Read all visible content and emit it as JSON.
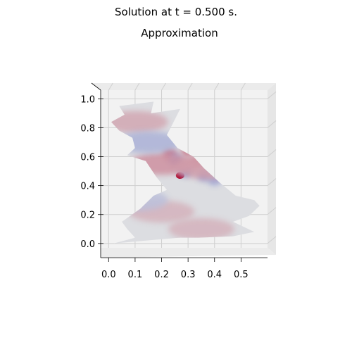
{
  "figure": {
    "suptitle": "Solution at t = 0.500 s.",
    "title": "Approximation"
  },
  "chart_data": {
    "type": "surface",
    "title": "Approximation",
    "suptitle": "Solution at t = 0.500 s.",
    "xlabel": "",
    "ylabel": "",
    "xlim": [
      -0.03,
      0.6
    ],
    "ylim": [
      -0.03,
      1.06
    ],
    "x_ticks": [
      "0.0",
      "0.1",
      "0.2",
      "0.3",
      "0.4",
      "0.5"
    ],
    "y_ticks": [
      "0.0",
      "0.2",
      "0.4",
      "0.6",
      "0.8",
      "1.0"
    ],
    "grid": true,
    "colormap": "coolwarm",
    "colors": {
      "neutral": "#dcdde1",
      "warm": "#f2b59a",
      "cool": "#a9c4f0",
      "peak_hot": "#b40426",
      "peak_cold": "#3b4cc0"
    },
    "domain_outline": [
      [
        0.04,
        0.95
      ],
      [
        0.17,
        0.98
      ],
      [
        0.16,
        0.9
      ],
      [
        0.27,
        0.93
      ],
      [
        0.24,
        0.82
      ],
      [
        0.22,
        0.75
      ],
      [
        0.26,
        0.66
      ],
      [
        0.32,
        0.6
      ],
      [
        0.36,
        0.52
      ],
      [
        0.42,
        0.42
      ],
      [
        0.48,
        0.33
      ],
      [
        0.55,
        0.3
      ],
      [
        0.57,
        0.26
      ],
      [
        0.53,
        0.19
      ],
      [
        0.47,
        0.15
      ],
      [
        0.55,
        0.08
      ],
      [
        0.47,
        0.05
      ],
      [
        0.34,
        0.04
      ],
      [
        0.27,
        0.04
      ],
      [
        0.14,
        0.02
      ],
      [
        0.02,
        0.0
      ],
      [
        0.1,
        0.04
      ],
      [
        0.07,
        0.1
      ],
      [
        0.05,
        0.15
      ],
      [
        0.12,
        0.24
      ],
      [
        0.17,
        0.33
      ],
      [
        0.22,
        0.37
      ],
      [
        0.18,
        0.46
      ],
      [
        0.14,
        0.57
      ],
      [
        0.07,
        0.61
      ],
      [
        0.1,
        0.66
      ],
      [
        0.09,
        0.73
      ],
      [
        0.04,
        0.78
      ],
      [
        0.01,
        0.84
      ],
      [
        0.06,
        0.89
      ]
    ],
    "hotspots": [
      {
        "x": 0.27,
        "y": 0.47,
        "value": 1.0
      },
      {
        "x": 0.23,
        "y": 0.62,
        "value": 0.55
      },
      {
        "x": 0.3,
        "y": 0.64,
        "value": 0.5
      },
      {
        "x": 0.33,
        "y": 0.56,
        "value": 0.45
      },
      {
        "x": 0.25,
        "y": 0.58,
        "value": -0.5
      },
      {
        "x": 0.29,
        "y": 0.5,
        "value": -0.55
      },
      {
        "x": 0.36,
        "y": 0.47,
        "value": -0.45
      },
      {
        "x": 0.4,
        "y": 0.44,
        "value": -0.4
      },
      {
        "x": 0.2,
        "y": 0.55,
        "value": 0.35
      },
      {
        "x": 0.38,
        "y": 0.52,
        "value": 0.3
      },
      {
        "x": 0.1,
        "y": 0.84,
        "value": 0.25
      },
      {
        "x": 0.15,
        "y": 0.7,
        "value": -0.3
      },
      {
        "x": 0.2,
        "y": 0.22,
        "value": 0.2
      },
      {
        "x": 0.35,
        "y": 0.1,
        "value": 0.2
      },
      {
        "x": 0.1,
        "y": 0.3,
        "value": -0.2
      }
    ]
  }
}
